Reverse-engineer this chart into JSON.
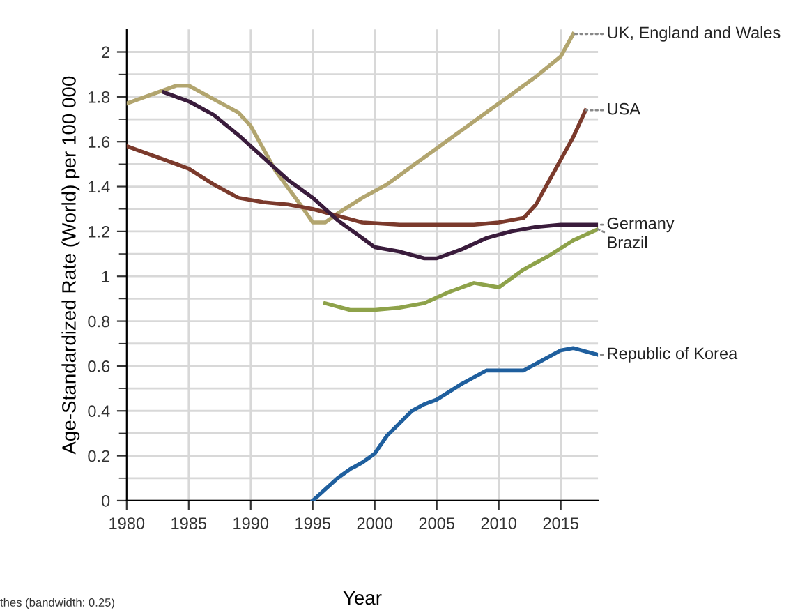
{
  "chart_data": {
    "type": "line",
    "xlabel": "Year",
    "ylabel": "Age-Standardized Rate (World) per 100 000",
    "xlim": [
      1980,
      2018
    ],
    "xticks": [
      1980,
      1985,
      1990,
      1995,
      2000,
      2005,
      2010,
      2015
    ],
    "ylim": [
      0,
      2.1
    ],
    "yticks": [
      0,
      0.2,
      0.4,
      0.6,
      0.8,
      1,
      1.2,
      1.4,
      1.6,
      1.8,
      2
    ],
    "grid": true,
    "marker": "none",
    "line_style": "solid",
    "annotations": [
      "thes (bandwidth: 0.25)"
    ],
    "series": [
      {
        "name": "UK, England and Wales",
        "color": "#b2a56f",
        "x": [
          1980,
          1982,
          1984,
          1985,
          1987,
          1989,
          1990,
          1992,
          1994,
          1995,
          1996,
          1997,
          1999,
          2001,
          2003,
          2005,
          2007,
          2009,
          2011,
          2013,
          2015,
          2016
        ],
        "values": [
          1.77,
          1.81,
          1.85,
          1.85,
          1.79,
          1.73,
          1.67,
          1.47,
          1.32,
          1.24,
          1.24,
          1.28,
          1.35,
          1.41,
          1.49,
          1.57,
          1.65,
          1.73,
          1.81,
          1.89,
          1.98,
          2.08
        ]
      },
      {
        "name": "USA",
        "color": "#7b3a2c",
        "x": [
          1980,
          1983,
          1985,
          1987,
          1989,
          1991,
          1993,
          1995,
          1997,
          1999,
          2002,
          2005,
          2008,
          2010,
          2012,
          2013,
          2014,
          2016,
          2017
        ],
        "values": [
          1.58,
          1.52,
          1.48,
          1.41,
          1.35,
          1.33,
          1.32,
          1.3,
          1.27,
          1.24,
          1.23,
          1.23,
          1.23,
          1.24,
          1.26,
          1.32,
          1.42,
          1.62,
          1.74
        ]
      },
      {
        "name": "Germany",
        "color": "#3a1c3c",
        "x": [
          1983,
          1985,
          1987,
          1989,
          1991,
          1993,
          1995,
          1997,
          1999,
          2000,
          2002,
          2004,
          2005,
          2007,
          2009,
          2011,
          2013,
          2015,
          2018
        ],
        "values": [
          1.82,
          1.78,
          1.72,
          1.63,
          1.53,
          1.43,
          1.35,
          1.25,
          1.17,
          1.13,
          1.11,
          1.08,
          1.08,
          1.12,
          1.17,
          1.2,
          1.22,
          1.23,
          1.23
        ]
      },
      {
        "name": "Brazil",
        "color": "#8ea24a",
        "x": [
          1996,
          1998,
          2000,
          2002,
          2004,
          2006,
          2008,
          2009,
          2010,
          2012,
          2014,
          2016,
          2018
        ],
        "values": [
          0.88,
          0.85,
          0.85,
          0.86,
          0.88,
          0.93,
          0.97,
          0.96,
          0.95,
          1.03,
          1.09,
          1.16,
          1.21
        ]
      },
      {
        "name": "Republic of Korea",
        "color": "#1f5f9e",
        "x": [
          1995,
          1997,
          1998,
          1999,
          2000,
          2001,
          2003,
          2004,
          2005,
          2007,
          2009,
          2010,
          2012,
          2013,
          2015,
          2016,
          2018
        ],
        "values": [
          0.0,
          0.1,
          0.14,
          0.17,
          0.21,
          0.29,
          0.4,
          0.43,
          0.45,
          0.52,
          0.58,
          0.58,
          0.58,
          0.61,
          0.67,
          0.68,
          0.65
        ]
      }
    ]
  }
}
